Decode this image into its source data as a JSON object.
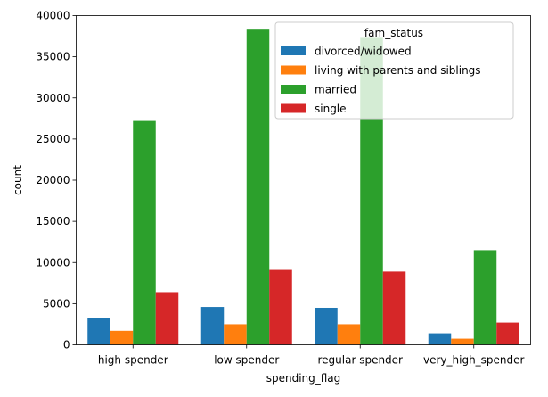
{
  "chart_data": {
    "type": "bar",
    "xlabel": "spending_flag",
    "ylabel": "count",
    "categories": [
      "high spender",
      "low spender",
      "regular spender",
      "very_high_spender"
    ],
    "ylim": [
      0,
      40000
    ],
    "yticks": [
      0,
      5000,
      10000,
      15000,
      20000,
      25000,
      30000,
      35000,
      40000
    ],
    "grid": false,
    "legend": {
      "title": "fam_status",
      "placement": "top-right"
    },
    "series": [
      {
        "name": "divorced/widowed",
        "color": "#1f77b4",
        "values": [
          3200,
          4600,
          4500,
          1400
        ]
      },
      {
        "name": "living with parents and siblings",
        "color": "#ff7f0e",
        "values": [
          1700,
          2500,
          2500,
          750
        ]
      },
      {
        "name": "married",
        "color": "#2ca02c",
        "values": [
          27200,
          38300,
          37300,
          11500
        ]
      },
      {
        "name": "single",
        "color": "#d62728",
        "values": [
          6400,
          9100,
          8900,
          2700
        ]
      }
    ]
  }
}
